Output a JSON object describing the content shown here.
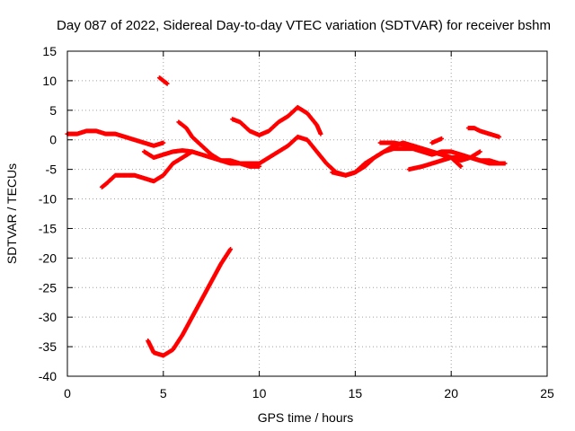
{
  "chart_data": {
    "type": "scatter",
    "title": "Day 087 of 2022, Sidereal Day-to-day VTEC variation (SDTVAR) for receiver bshm",
    "xlabel": "GPS time / hours",
    "ylabel": "SDTVAR / TECUs",
    "xlim": [
      0,
      25
    ],
    "ylim": [
      -40,
      15
    ],
    "xticks": [
      0,
      5,
      10,
      15,
      20,
      25
    ],
    "yticks": [
      15,
      10,
      5,
      0,
      -5,
      -10,
      -15,
      -20,
      -25,
      -30,
      -35,
      -40
    ],
    "xtick_labels": [
      "0",
      "5",
      "10",
      "15",
      "20",
      "25"
    ],
    "ytick_labels": [
      "15",
      "10",
      "5",
      "0",
      "-5",
      "-10",
      "-15",
      "-20",
      "-25",
      "-30",
      "-35",
      "-40"
    ],
    "grid": true,
    "marker": "plus",
    "color": "#ff0000",
    "series": [
      {
        "name": "track-1",
        "x": [
          0,
          0.5,
          1,
          1.5,
          2,
          2.5,
          3,
          3.5,
          4,
          4.5,
          5
        ],
        "y": [
          1,
          1,
          1.5,
          1.5,
          1,
          1,
          0.5,
          0,
          -0.5,
          -1,
          -0.5
        ]
      },
      {
        "name": "track-2",
        "x": [
          4,
          4.5,
          5,
          5.5,
          6,
          6.5,
          7,
          7.5,
          8,
          8.5,
          9,
          9.5,
          10,
          10.5,
          11,
          11.5,
          12,
          12.5,
          13,
          13.5,
          14,
          14.5,
          15,
          15.5,
          16,
          16.5,
          17,
          17.5,
          18,
          18.5,
          19,
          19.5,
          20,
          20.5,
          21,
          21.5,
          22,
          22.5
        ],
        "y": [
          -2,
          -3,
          -2.5,
          -2,
          -1.8,
          -2,
          -2.5,
          -3,
          -3.5,
          -3.5,
          -4,
          -4,
          -4,
          -3,
          -2,
          -1,
          0.5,
          0,
          -2,
          -4,
          -5.5,
          -6,
          -5.5,
          -4.5,
          -3,
          -2,
          -1.5,
          -1.5,
          -1.5,
          -2,
          -2.5,
          -2,
          -2,
          -2.5,
          -3,
          -3.5,
          -4,
          -4
        ]
      },
      {
        "name": "track-3",
        "x": [
          1.8,
          2,
          2.5,
          3,
          3.5,
          4,
          4.5,
          5,
          5.5,
          6,
          6.5
        ],
        "y": [
          -8,
          -7.5,
          -6,
          -6,
          -6,
          -6.5,
          -7,
          -6,
          -4,
          -3,
          -2
        ]
      },
      {
        "name": "track-4",
        "x": [
          5.8,
          6.2,
          6.5,
          7,
          7.5,
          8,
          8.5,
          9,
          9.5,
          10
        ],
        "y": [
          3,
          2,
          0.5,
          -1,
          -2.5,
          -3.5,
          -4,
          -4,
          -4.5,
          -4.5
        ]
      },
      {
        "name": "track-5",
        "x": [
          4.8,
          5,
          5.2
        ],
        "y": [
          10.5,
          10,
          9.5
        ]
      },
      {
        "name": "track-6",
        "x": [
          8.6,
          9,
          9.5,
          10,
          10.5,
          11,
          11.5,
          12,
          12.5,
          13,
          13.2
        ],
        "y": [
          3.5,
          3,
          1.5,
          0.8,
          1.5,
          3,
          4,
          5.5,
          4.5,
          2.5,
          1
        ]
      },
      {
        "name": "track-7",
        "x": [
          13.8,
          14.5,
          15,
          15.5,
          16,
          16.5,
          17,
          17.5,
          18,
          18.5,
          19,
          19.5,
          20,
          20.5
        ],
        "y": [
          -5.5,
          -6,
          -5.5,
          -4,
          -3,
          -2,
          -1,
          -0.5,
          -1,
          -1.5,
          -2,
          -2.5,
          -3,
          -4.5
        ]
      },
      {
        "name": "track-8",
        "x": [
          17.8,
          18.5,
          19,
          19.5,
          20,
          20.5,
          21,
          21.5,
          22,
          22.5,
          22.8
        ],
        "y": [
          -5,
          -4.5,
          -4,
          -3.5,
          -3,
          -3,
          -3,
          -3.5,
          -3.5,
          -4,
          -4
        ]
      },
      {
        "name": "track-9",
        "x": [
          16.3,
          17,
          17.5,
          18,
          18.5,
          19,
          19.5,
          20,
          20.5,
          21,
          21.5
        ],
        "y": [
          -0.5,
          -0.5,
          -0.8,
          -1,
          -1.5,
          -2,
          -2.5,
          -3,
          -3.5,
          -3,
          -2
        ]
      },
      {
        "name": "track-10",
        "x": [
          19,
          19.5
        ],
        "y": [
          -0.5,
          0.2
        ]
      },
      {
        "name": "track-11",
        "x": [
          20.9,
          21.2,
          21.5,
          22,
          22.5
        ],
        "y": [
          2,
          2,
          1.5,
          1,
          0.5
        ]
      },
      {
        "name": "track-12",
        "x": [
          4.2,
          4.5,
          5,
          5.5,
          6,
          6.5,
          7,
          7.5,
          8,
          8.5
        ],
        "y": [
          -34,
          -36,
          -36.5,
          -35.5,
          -33,
          -30,
          -27,
          -24,
          -21,
          -18.5
        ]
      }
    ]
  }
}
